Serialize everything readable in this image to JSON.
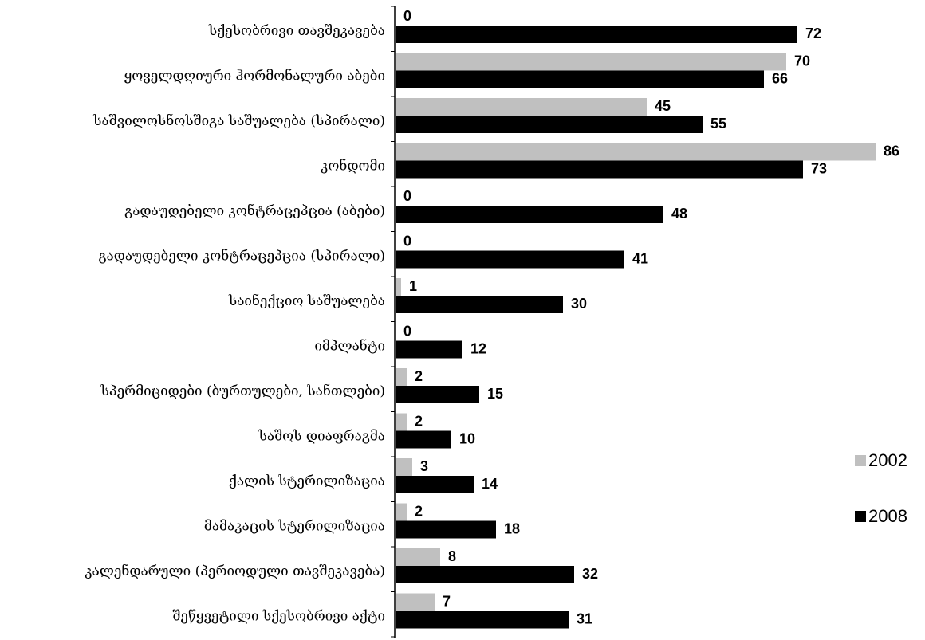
{
  "chart_data": {
    "type": "bar",
    "orientation": "horizontal",
    "title": "",
    "xlabel": "",
    "ylabel": "",
    "xlim": [
      0,
      90
    ],
    "grid": false,
    "legend_position": "right",
    "categories": [
      "სქესობრივი თავშეკავება",
      "ყოველდღიური ჰორმონალური აბები",
      "საშვილოსნოსშიგა საშუალება (სპირალი)",
      "კონდომი",
      "გადაუდებელი კონტრაცეპცია (აბები)",
      "გადაუდებელი კონტრაცეპცია (სპირალი)",
      "საინექციო საშუალება",
      "იმპლანტი",
      "სპერმიციდები (ბურთულები, სანთლები)",
      "საშოს დიაფრაგმა",
      "ქალის სტერილიზაცია",
      "მამაკაცის სტერილიზაცია",
      "კალენდარული (პერიოდული თავშეკავება)",
      "შეწყვეტილი სქესობრივი აქტი"
    ],
    "series": [
      {
        "name": "2002",
        "color": "#c0c0c0",
        "values": [
          0,
          70,
          45,
          86,
          0,
          0,
          1,
          0,
          2,
          2,
          3,
          2,
          8,
          7
        ]
      },
      {
        "name": "2008",
        "color": "#000000",
        "values": [
          72,
          66,
          55,
          73,
          48,
          41,
          30,
          12,
          15,
          10,
          14,
          18,
          32,
          31
        ]
      }
    ]
  }
}
